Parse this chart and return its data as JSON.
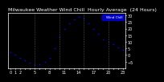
{
  "title": "Milwaukee Weather Wind Chill  Hourly Average  (24 Hours)",
  "hours": [
    0,
    1,
    2,
    3,
    4,
    5,
    6,
    7,
    8,
    9,
    10,
    11,
    12,
    13,
    14,
    15,
    16,
    17,
    18,
    19,
    20,
    21,
    22,
    23
  ],
  "wind_chill": [
    2,
    0,
    -2,
    -4,
    -6,
    -7,
    -7,
    -5,
    -2,
    5,
    14,
    20,
    24,
    27,
    29,
    28,
    24,
    20,
    16,
    12,
    10,
    8,
    6,
    4
  ],
  "line_color": "#0000ff",
  "marker": "o",
  "markersize": 1.2,
  "fig_bg": "#000000",
  "plot_bg": "#000000",
  "grid_color": "#666666",
  "ylim": [
    -10,
    32
  ],
  "xlim": [
    -0.5,
    23.5
  ],
  "legend_label": "Wind Chill",
  "legend_color": "#0000ee",
  "yticks": [
    -5,
    0,
    5,
    10,
    15,
    20,
    25,
    30
  ],
  "title_fontsize": 4.5,
  "tick_fontsize": 3.5,
  "title_color": "#ffffff",
  "tick_color": "#ffffff",
  "spine_color": "#ffffff"
}
